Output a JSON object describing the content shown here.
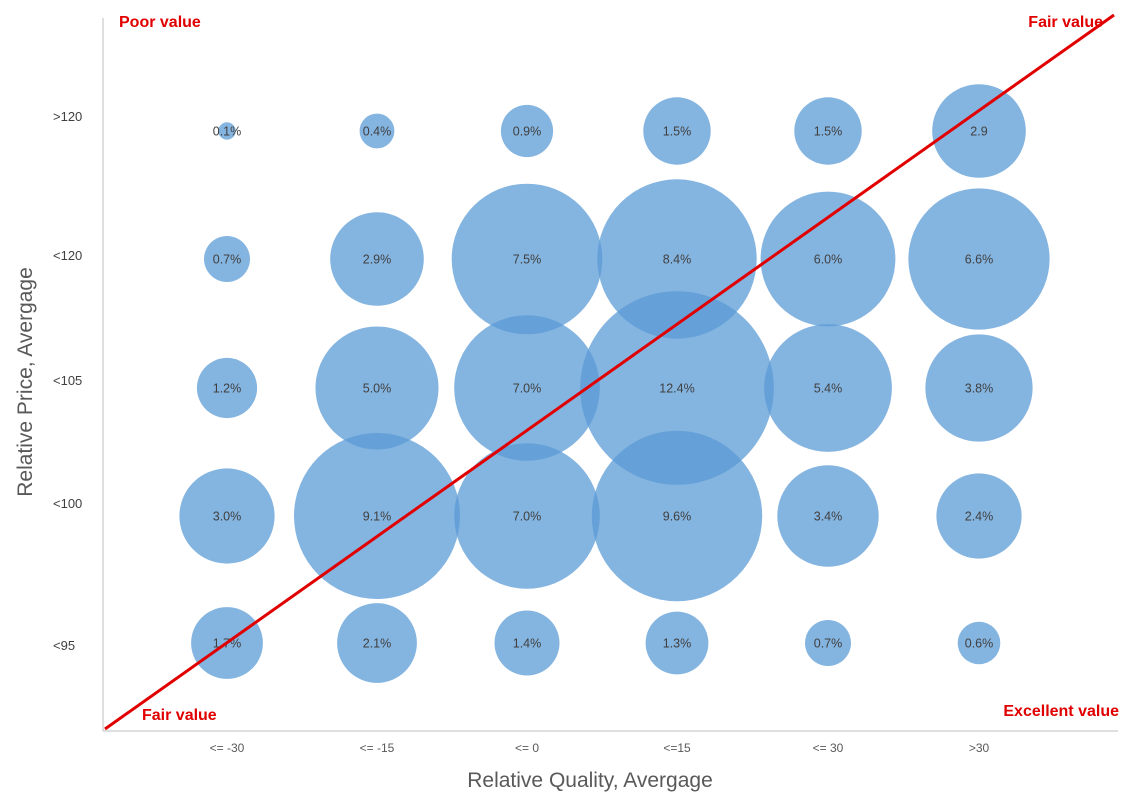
{
  "colors": {
    "bubble": "#5b9bd5",
    "line": "#e00000",
    "axis": "#bfbfbf"
  },
  "chart_data": {
    "type": "bubble",
    "xlabel": "Relative Quality, Avergage",
    "ylabel": "Relative Price, Avergage",
    "x_categories": [
      "<= -30",
      "<= -15",
      "<= 0",
      "<=15",
      "<= 30",
      ">30"
    ],
    "y_categories": [
      "<95",
      "<100",
      "<105",
      "<120",
      ">120"
    ],
    "annotations": {
      "top_left": "Poor value",
      "top_right": "Fair value",
      "bottom_left": "Fair value",
      "bottom_right": "Excellent value"
    },
    "bubbles": [
      {
        "x": "<= -30",
        "y": ">120",
        "value": 0.1,
        "label": "0.1%"
      },
      {
        "x": "<= -15",
        "y": ">120",
        "value": 0.4,
        "label": "0.4%"
      },
      {
        "x": "<= 0",
        "y": ">120",
        "value": 0.9,
        "label": "0.9%"
      },
      {
        "x": "<=15",
        "y": ">120",
        "value": 1.5,
        "label": "1.5%"
      },
      {
        "x": "<= 30",
        "y": ">120",
        "value": 1.5,
        "label": "1.5%"
      },
      {
        "x": ">30",
        "y": ">120",
        "value": 2.9,
        "label": "2.9"
      },
      {
        "x": "<= -30",
        "y": "<120",
        "value": 0.7,
        "label": "0.7%"
      },
      {
        "x": "<= -15",
        "y": "<120",
        "value": 2.9,
        "label": "2.9%"
      },
      {
        "x": "<= 0",
        "y": "<120",
        "value": 7.5,
        "label": "7.5%"
      },
      {
        "x": "<=15",
        "y": "<120",
        "value": 8.4,
        "label": "8.4%"
      },
      {
        "x": "<= 30",
        "y": "<120",
        "value": 6.0,
        "label": "6.0%"
      },
      {
        "x": ">30",
        "y": "<120",
        "value": 6.6,
        "label": "6.6%"
      },
      {
        "x": "<= -30",
        "y": "<105",
        "value": 1.2,
        "label": "1.2%"
      },
      {
        "x": "<= -15",
        "y": "<105",
        "value": 5.0,
        "label": "5.0%"
      },
      {
        "x": "<= 0",
        "y": "<105",
        "value": 7.0,
        "label": "7.0%"
      },
      {
        "x": "<=15",
        "y": "<105",
        "value": 12.4,
        "label": "12.4%"
      },
      {
        "x": "<= 30",
        "y": "<105",
        "value": 5.4,
        "label": "5.4%"
      },
      {
        "x": ">30",
        "y": "<105",
        "value": 3.8,
        "label": "3.8%"
      },
      {
        "x": "<= -30",
        "y": "<100",
        "value": 3.0,
        "label": "3.0%"
      },
      {
        "x": "<= -15",
        "y": "<100",
        "value": 9.1,
        "label": "9.1%"
      },
      {
        "x": "<= 0",
        "y": "<100",
        "value": 7.0,
        "label": "7.0%"
      },
      {
        "x": "<=15",
        "y": "<100",
        "value": 9.6,
        "label": "9.6%"
      },
      {
        "x": "<= 30",
        "y": "<100",
        "value": 3.4,
        "label": "3.4%"
      },
      {
        "x": ">30",
        "y": "<100",
        "value": 2.4,
        "label": "2.4%"
      },
      {
        "x": "<= -30",
        "y": "<95",
        "value": 1.7,
        "label": "1.7%"
      },
      {
        "x": "<= -15",
        "y": "<95",
        "value": 2.1,
        "label": "2.1%"
      },
      {
        "x": "<= 0",
        "y": "<95",
        "value": 1.4,
        "label": "1.4%"
      },
      {
        "x": "<=15",
        "y": "<95",
        "value": 1.3,
        "label": "1.3%"
      },
      {
        "x": "<= 30",
        "y": "<95",
        "value": 0.7,
        "label": "0.7%"
      },
      {
        "x": ">30",
        "y": "<95",
        "value": 0.6,
        "label": "0.6%"
      }
    ],
    "grid": false,
    "legend": "none"
  }
}
